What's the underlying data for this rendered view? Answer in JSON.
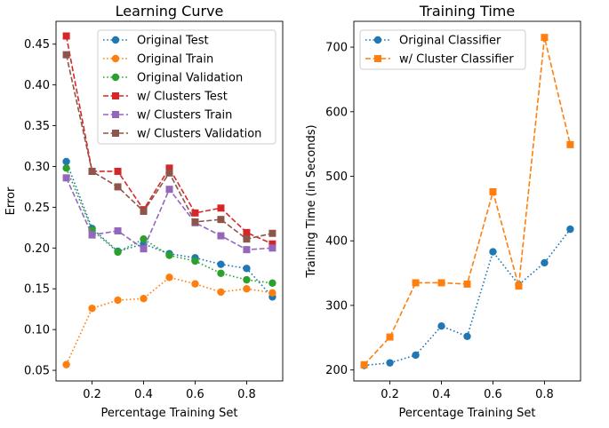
{
  "chart_data": [
    {
      "type": "line",
      "title": "Learning Curve",
      "xlabel": "Percentage Training Set",
      "ylabel": "Error",
      "xlim": [
        0.06,
        0.94
      ],
      "ylim": [
        0.037,
        0.478
      ],
      "xticks": [
        0.2,
        0.4,
        0.6,
        0.8
      ],
      "xtick_labels": [
        "0.2",
        "0.4",
        "0.6",
        "0.8"
      ],
      "yticks": [
        0.05,
        0.1,
        0.15,
        0.2,
        0.25,
        0.3,
        0.35,
        0.4,
        0.45
      ],
      "ytick_labels": [
        "0.05",
        "0.10",
        "0.15",
        "0.20",
        "0.25",
        "0.30",
        "0.35",
        "0.40",
        "0.45"
      ],
      "grid": false,
      "legend_position": "top-right",
      "x": [
        0.1,
        0.2,
        0.3,
        0.4,
        0.5,
        0.6,
        0.7,
        0.8,
        0.9
      ],
      "series": [
        {
          "name": "Original Test",
          "color": "#1f77b4",
          "linestyle": "dotted",
          "marker": "circle",
          "values": [
            0.306,
            0.224,
            0.196,
            0.205,
            0.193,
            0.188,
            0.18,
            0.175,
            0.14
          ]
        },
        {
          "name": "Original Train",
          "color": "#ff7f0e",
          "linestyle": "dotted",
          "marker": "circle",
          "values": [
            0.057,
            0.126,
            0.136,
            0.138,
            0.164,
            0.156,
            0.146,
            0.15,
            0.145
          ]
        },
        {
          "name": "Original Validation",
          "color": "#2ca02c",
          "linestyle": "dotted",
          "marker": "circle",
          "values": [
            0.298,
            0.222,
            0.195,
            0.211,
            0.191,
            0.184,
            0.169,
            0.161,
            0.157
          ]
        },
        {
          "name": "w/ Clusters Test",
          "color": "#d62728",
          "linestyle": "dashed",
          "marker": "square",
          "values": [
            0.46,
            0.294,
            0.294,
            0.247,
            0.298,
            0.243,
            0.249,
            0.219,
            0.205
          ]
        },
        {
          "name": "w/ Clusters Train",
          "color": "#9467bd",
          "linestyle": "dashed",
          "marker": "square",
          "values": [
            0.286,
            0.216,
            0.221,
            0.199,
            0.272,
            0.231,
            0.215,
            0.198,
            0.2
          ]
        },
        {
          "name": "w/ Clusters Validation",
          "color": "#8c564b",
          "linestyle": "dashed",
          "marker": "square",
          "values": [
            0.437,
            0.294,
            0.275,
            0.245,
            0.292,
            0.232,
            0.235,
            0.211,
            0.218
          ]
        }
      ]
    },
    {
      "type": "line",
      "title": "Training Time",
      "xlabel": "Percentage Training Set",
      "ylabel": "Training Time (in Seconds)",
      "xlim": [
        0.06,
        0.94
      ],
      "ylim": [
        183,
        740
      ],
      "xticks": [
        0.2,
        0.4,
        0.6,
        0.8
      ],
      "xtick_labels": [
        "0.2",
        "0.4",
        "0.6",
        "0.8"
      ],
      "yticks": [
        200,
        300,
        400,
        500,
        600,
        700
      ],
      "ytick_labels": [
        "200",
        "300",
        "400",
        "500",
        "600",
        "700"
      ],
      "grid": false,
      "legend_position": "top-left",
      "x": [
        0.1,
        0.2,
        0.3,
        0.4,
        0.5,
        0.6,
        0.7,
        0.8,
        0.9
      ],
      "series": [
        {
          "name": "Original Classifier",
          "color": "#1f77b4",
          "linestyle": "dotted",
          "marker": "circle",
          "values": [
            207,
            211,
            223,
            268,
            252,
            383,
            332,
            366,
            418
          ]
        },
        {
          "name": "w/ Cluster Classifier",
          "color": "#ff7f0e",
          "linestyle": "dashed",
          "marker": "square",
          "values": [
            208,
            251,
            335,
            335,
            333,
            476,
            330,
            715,
            549
          ]
        }
      ]
    }
  ]
}
